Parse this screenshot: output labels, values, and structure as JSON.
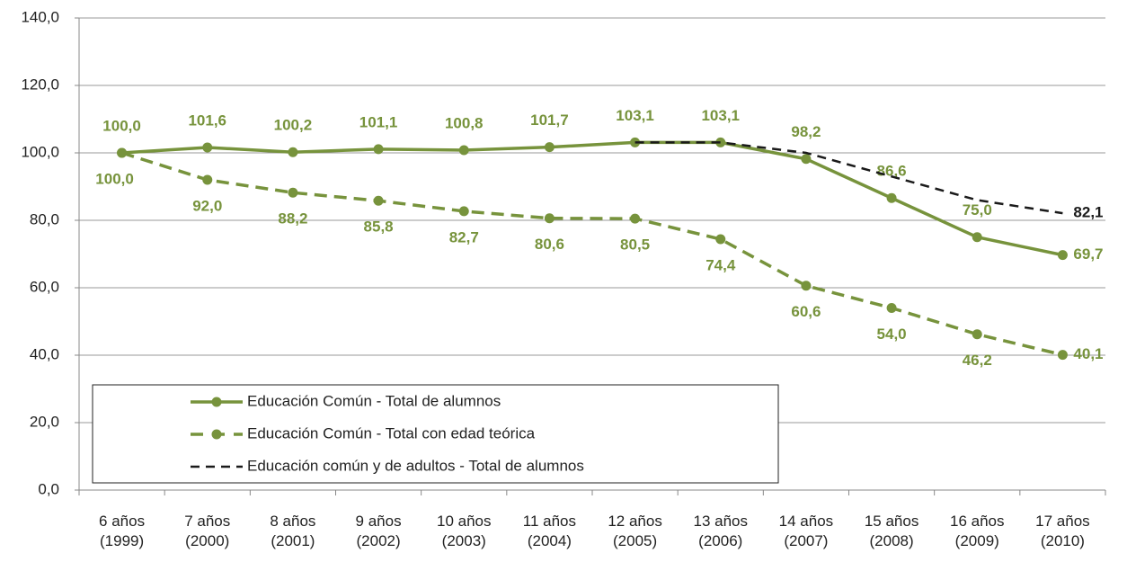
{
  "chart_data": {
    "type": "line",
    "categories": [
      "6 años\n(1999)",
      "7 años\n(2000)",
      "8 años\n(2001)",
      "9 años\n(2002)",
      "10 años\n(2003)",
      "11 años\n(2004)",
      "12 años\n(2005)",
      "13 años\n(2006)",
      "14 años\n(2007)",
      "15 años\n(2008)",
      "16 años\n(2009)",
      "17 años\n(2010)"
    ],
    "series": [
      {
        "name": "Educación Común - Total de alumnos",
        "color": "#77933c",
        "line_style": "solid",
        "markers": true,
        "values": [
          100.0,
          101.6,
          100.2,
          101.1,
          100.8,
          101.7,
          103.1,
          103.1,
          98.2,
          86.6,
          75.0,
          69.7
        ],
        "value_labels": [
          "100,0",
          "101,6",
          "100,2",
          "101,1",
          "100,8",
          "101,7",
          "103,1",
          "103,1",
          "98,2",
          "86,6",
          "75,0",
          "69,7"
        ]
      },
      {
        "name": "Educación Común - Total con edad teórica",
        "color": "#77933c",
        "line_style": "dashed",
        "markers": true,
        "values": [
          100.0,
          92.0,
          88.2,
          85.8,
          82.7,
          80.6,
          80.5,
          74.4,
          60.6,
          54.0,
          46.2,
          40.1
        ],
        "value_labels": [
          "100,0",
          "92,0",
          "88,2",
          "85,8",
          "82,7",
          "80,6",
          "80,5",
          "74,4",
          "60,6",
          "54,0",
          "46,2",
          "40,1"
        ]
      },
      {
        "name": "Educación común y de adultos - Total de alumnos",
        "color": "#1a1a1a",
        "line_style": "dashed",
        "markers": false,
        "values": [
          null,
          null,
          null,
          null,
          null,
          null,
          103.1,
          103.1,
          100.0,
          93.0,
          86.0,
          82.1
        ],
        "value_labels": [
          null,
          null,
          null,
          null,
          null,
          null,
          null,
          null,
          null,
          null,
          null,
          "82,1"
        ]
      }
    ],
    "ylim": [
      0,
      140
    ],
    "yticks": [
      {
        "value": 0,
        "label": "0,0"
      },
      {
        "value": 20,
        "label": "20,0"
      },
      {
        "value": 40,
        "label": "40,0"
      },
      {
        "value": 60,
        "label": "60,0"
      },
      {
        "value": 80,
        "label": "80,0"
      },
      {
        "value": 100,
        "label": "100,0"
      },
      {
        "value": 120,
        "label": "120,0"
      },
      {
        "value": 140,
        "label": "140,0"
      }
    ],
    "grid": true,
    "legend_position": "lower left"
  }
}
